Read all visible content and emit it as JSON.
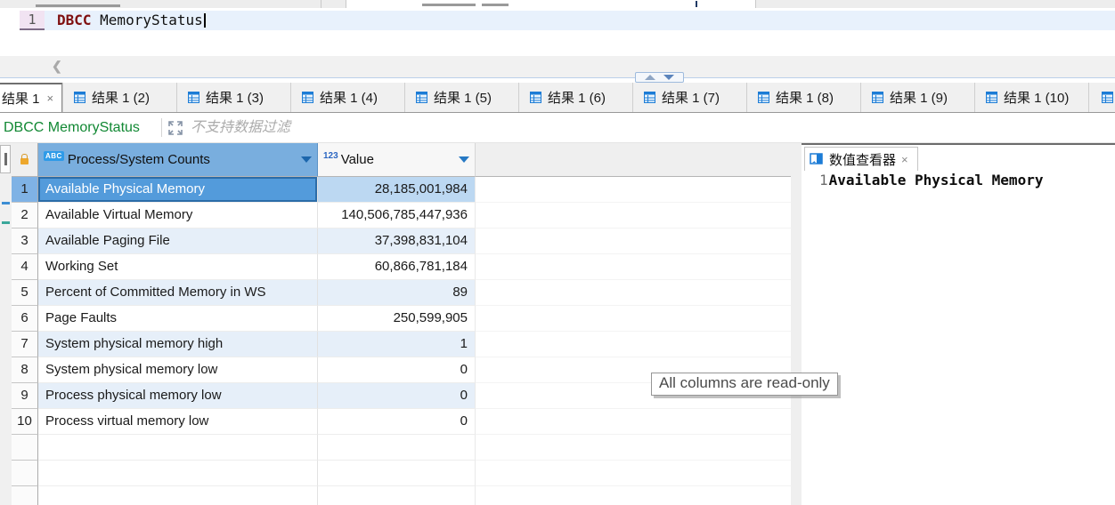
{
  "editor": {
    "line_number": "1",
    "keyword": "DBCC",
    "statement": " MemoryStatus",
    "collapse_chevron": "❮"
  },
  "results_tabs": {
    "tabs": [
      {
        "label": "结果 1",
        "active": true,
        "close": "×"
      },
      {
        "label": "结果 1 (2)"
      },
      {
        "label": "结果 1 (3)"
      },
      {
        "label": "结果 1 (4)"
      },
      {
        "label": "结果 1 (5)"
      },
      {
        "label": "结果 1 (6)"
      },
      {
        "label": "结果 1 (7)"
      },
      {
        "label": "结果 1 (8)"
      },
      {
        "label": "结果 1 (9)"
      },
      {
        "label": "结果 1 (10)"
      },
      {
        "label": "",
        "partial": true
      }
    ]
  },
  "filter_bar": {
    "query": "DBCC MemoryStatus",
    "message": "不支持数据过滤"
  },
  "grid": {
    "columns": [
      {
        "type_badge": "ABC",
        "label": "Process/System Counts",
        "selected": true
      },
      {
        "type_badge": "123",
        "label": "Value"
      }
    ],
    "rows": [
      {
        "num": "1",
        "name": "Available Physical Memory",
        "value": "28,185,001,984",
        "selected": true
      },
      {
        "num": "2",
        "name": "Available Virtual Memory",
        "value": "140,506,785,447,936"
      },
      {
        "num": "3",
        "name": "Available Paging File",
        "value": "37,398,831,104"
      },
      {
        "num": "4",
        "name": "Working Set",
        "value": "60,866,781,184"
      },
      {
        "num": "5",
        "name": "Percent of Committed Memory in WS",
        "value": "89"
      },
      {
        "num": "6",
        "name": "Page Faults",
        "value": "250,599,905"
      },
      {
        "num": "7",
        "name": "System physical memory high",
        "value": "1"
      },
      {
        "num": "8",
        "name": "System physical memory low",
        "value": "0"
      },
      {
        "num": "9",
        "name": "Process physical memory low",
        "value": "0"
      },
      {
        "num": "10",
        "name": "Process virtual memory low",
        "value": "0"
      }
    ],
    "empty_rows": 3
  },
  "value_viewer": {
    "tab_label": "数值查看器",
    "close": "×",
    "line_number": "1",
    "value": "Available Physical Memory"
  },
  "tooltip": {
    "text": "All columns are read-only"
  },
  "colors": {
    "accent_blue": "#1c7cd6",
    "selected_cell_blue": "#539bdb",
    "selected_header_blue": "#79aede",
    "row_tint_blue": "#e6eff9",
    "selected_value_tint": "#bcd8f2",
    "query_green": "#118833",
    "keyword_red": "#7f1010",
    "lock_orange": "#eda72c"
  }
}
